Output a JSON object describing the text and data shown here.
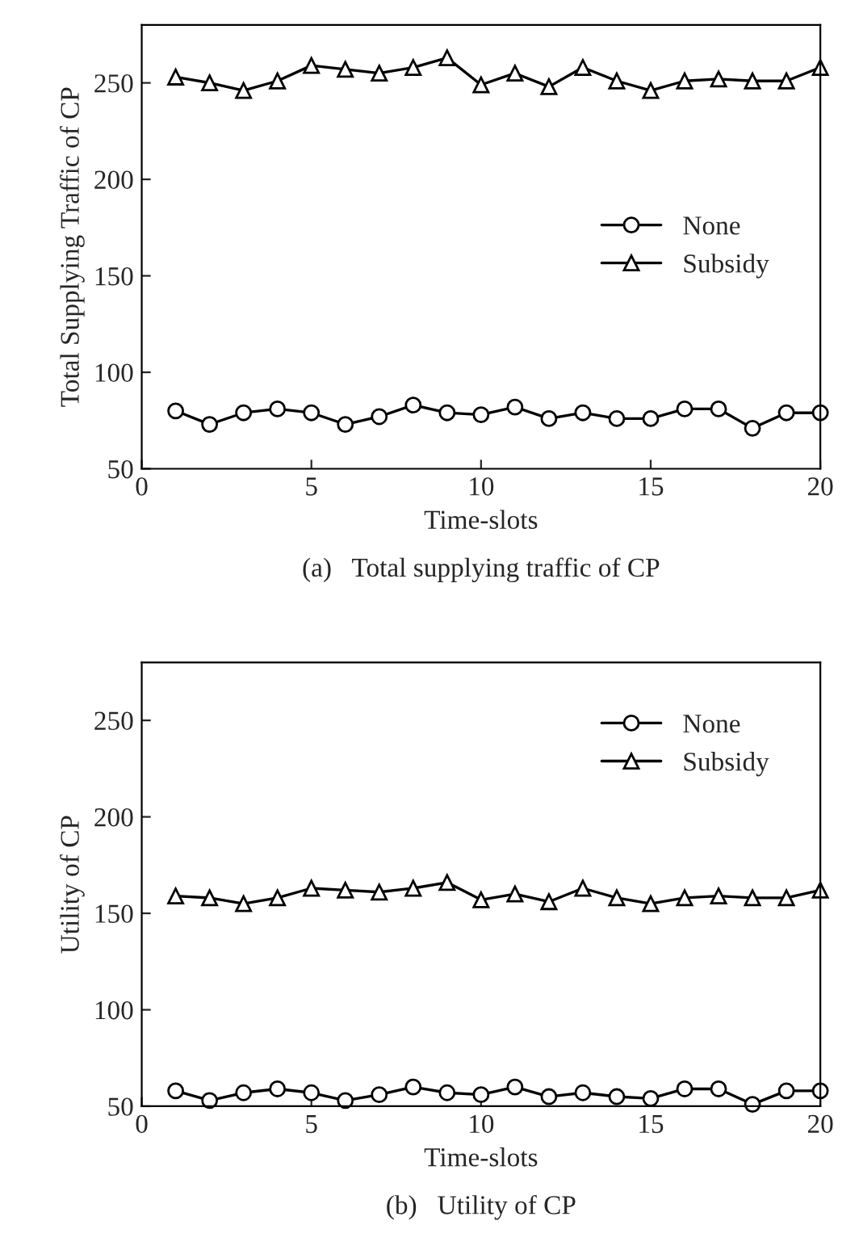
{
  "chart_data": [
    {
      "type": "line",
      "title": "(a)   Total supplying traffic of CP",
      "xlabel": "Time-slots",
      "ylabel": "Total Supplying Traffic of CP",
      "x": [
        1,
        2,
        3,
        4,
        5,
        6,
        7,
        8,
        9,
        10,
        11,
        12,
        13,
        14,
        15,
        16,
        17,
        18,
        19,
        20
      ],
      "series": [
        {
          "name": "None",
          "color": "#000000",
          "marker": "circle",
          "values": [
            80,
            73,
            79,
            81,
            79,
            73,
            77,
            83,
            79,
            78,
            82,
            76,
            79,
            76,
            76,
            81,
            81,
            71,
            79,
            79
          ]
        },
        {
          "name": "Subsidy",
          "color": "#000000",
          "marker": "triangle",
          "values": [
            253,
            250,
            246,
            251,
            259,
            257,
            255,
            258,
            263,
            249,
            255,
            248,
            258,
            251,
            246,
            251,
            252,
            251,
            251,
            258
          ]
        }
      ],
      "xlim": [
        0,
        20
      ],
      "xticks": [
        0,
        5,
        10,
        15,
        20
      ],
      "ylim": [
        50,
        280
      ],
      "yticks": [
        50,
        100,
        150,
        200,
        250
      ],
      "grid": false,
      "legend": "right",
      "line_style": "solid"
    },
    {
      "type": "line",
      "title": "(b)   Utility of CP",
      "xlabel": "Time-slots",
      "ylabel": "Utility of CP",
      "x": [
        1,
        2,
        3,
        4,
        5,
        6,
        7,
        8,
        9,
        10,
        11,
        12,
        13,
        14,
        15,
        16,
        17,
        18,
        19,
        20
      ],
      "series": [
        {
          "name": "None",
          "color": "#000000",
          "marker": "circle",
          "values": [
            58,
            53,
            57,
            59,
            57,
            53,
            56,
            60,
            57,
            56,
            60,
            55,
            57,
            55,
            54,
            59,
            59,
            51,
            58,
            58
          ]
        },
        {
          "name": "Subsidy",
          "color": "#000000",
          "marker": "triangle",
          "values": [
            159,
            158,
            155,
            158,
            163,
            162,
            161,
            163,
            166,
            157,
            160,
            156,
            163,
            158,
            155,
            158,
            159,
            158,
            158,
            162
          ]
        }
      ],
      "xlim": [
        0,
        20
      ],
      "xticks": [
        0,
        5,
        10,
        15,
        20
      ],
      "ylim": [
        50,
        280
      ],
      "yticks": [
        50,
        100,
        150,
        200,
        250
      ],
      "grid": false,
      "legend": "top right",
      "line_style": "solid"
    }
  ]
}
